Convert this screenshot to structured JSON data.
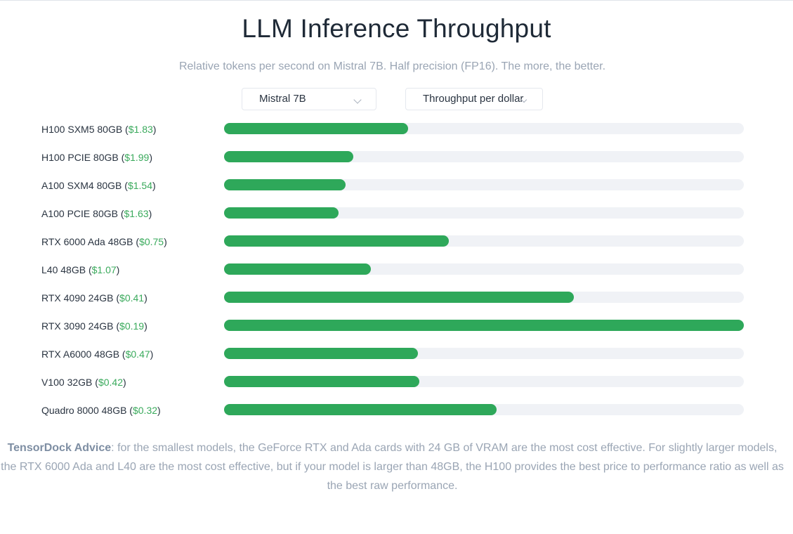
{
  "title": "LLM Inference Throughput",
  "subtitle": "Relative tokens per second on Mistral 7B. Half precision (FP16). The more, the better.",
  "controls": {
    "model_select": "Mistral 7B",
    "metric_select": "Throughput per dollar"
  },
  "colors": {
    "bar": "#2ea85a",
    "track": "#f0f2f6",
    "price": "#3aaa5c"
  },
  "chart_data": {
    "type": "bar",
    "orientation": "horizontal",
    "categories": [
      "H100 SXM5 80GB",
      "H100 PCIE 80GB",
      "A100 SXM4 80GB",
      "A100 PCIE 80GB",
      "RTX 6000 Ada 48GB",
      "L40 48GB",
      "RTX 4090 24GB",
      "RTX 3090 24GB",
      "RTX A6000 48GB",
      "V100 32GB",
      "Quadro 8000 48GB"
    ],
    "prices": [
      "$1.83",
      "$1.99",
      "$1.54",
      "$1.63",
      "$0.75",
      "$1.07",
      "$0.41",
      "$0.19",
      "$0.47",
      "$0.42",
      "$0.32"
    ],
    "values": [
      0.354,
      0.249,
      0.234,
      0.22,
      0.432,
      0.282,
      0.673,
      1.0,
      0.373,
      0.376,
      0.524
    ],
    "value_unit": "fraction of best",
    "xlim": [
      0,
      1
    ]
  },
  "advice": {
    "brand": "TensorDock Advice",
    "text": ": for the smallest models, the GeForce RTX and Ada cards with 24 GB of VRAM are the most cost effective. For slightly larger models, the RTX 6000 Ada and L40 are the most cost effective, but if your model is larger than 48GB, the H100 provides the best price to performance ratio as well as the best raw performance."
  }
}
